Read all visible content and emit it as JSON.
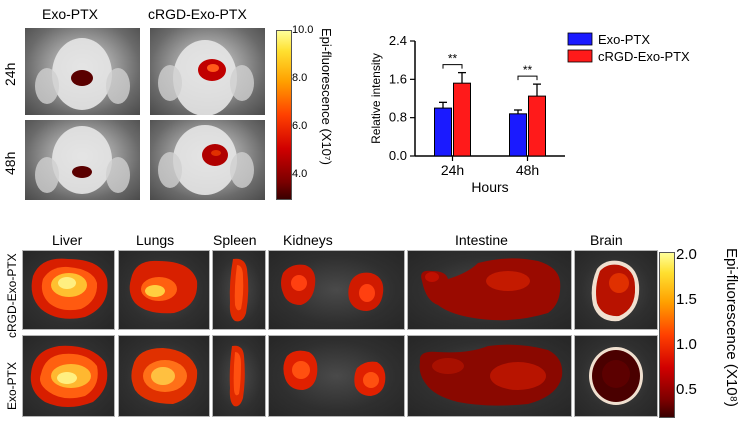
{
  "in_vivo": {
    "col_labels": [
      "Exo-PTX",
      "cRGD-Exo-PTX"
    ],
    "row_labels": [
      "24h",
      "48h"
    ]
  },
  "top_colorbar": {
    "ticks": [
      "10.0",
      "8.0",
      "6.0",
      "4.0"
    ],
    "title": "Epi-fluorescence (X10⁷)"
  },
  "chart_data": {
    "type": "bar",
    "categories": [
      "24h",
      "48h"
    ],
    "series": [
      {
        "name": "Exo-PTX",
        "values": [
          1.0,
          0.88
        ],
        "errors": [
          0.12,
          0.08
        ],
        "color": "#1a1aff"
      },
      {
        "name": "cRGD-Exo-PTX",
        "values": [
          1.52,
          1.25
        ],
        "errors": [
          0.22,
          0.25
        ],
        "color": "#ff1a1a"
      }
    ],
    "xlabel": "Hours",
    "ylabel": "Relative intensity",
    "ylim": [
      0,
      2.4
    ],
    "yticks": [
      "0.0",
      "0.8",
      "1.6",
      "2.4"
    ],
    "significance": [
      "**",
      "**"
    ],
    "legend_position": "top-right"
  },
  "ex_vivo": {
    "organs": [
      "Liver",
      "Lungs",
      "Spleen",
      "Kidneys",
      "Intestine",
      "Brain"
    ],
    "row_labels": [
      "cRGD-Exo-PTX",
      "Exo-PTX"
    ]
  },
  "bottom_colorbar": {
    "ticks": [
      "2.0",
      "1.5",
      "1.0",
      "0.5"
    ],
    "title": "Epi-fluorescence (X10⁸)"
  }
}
